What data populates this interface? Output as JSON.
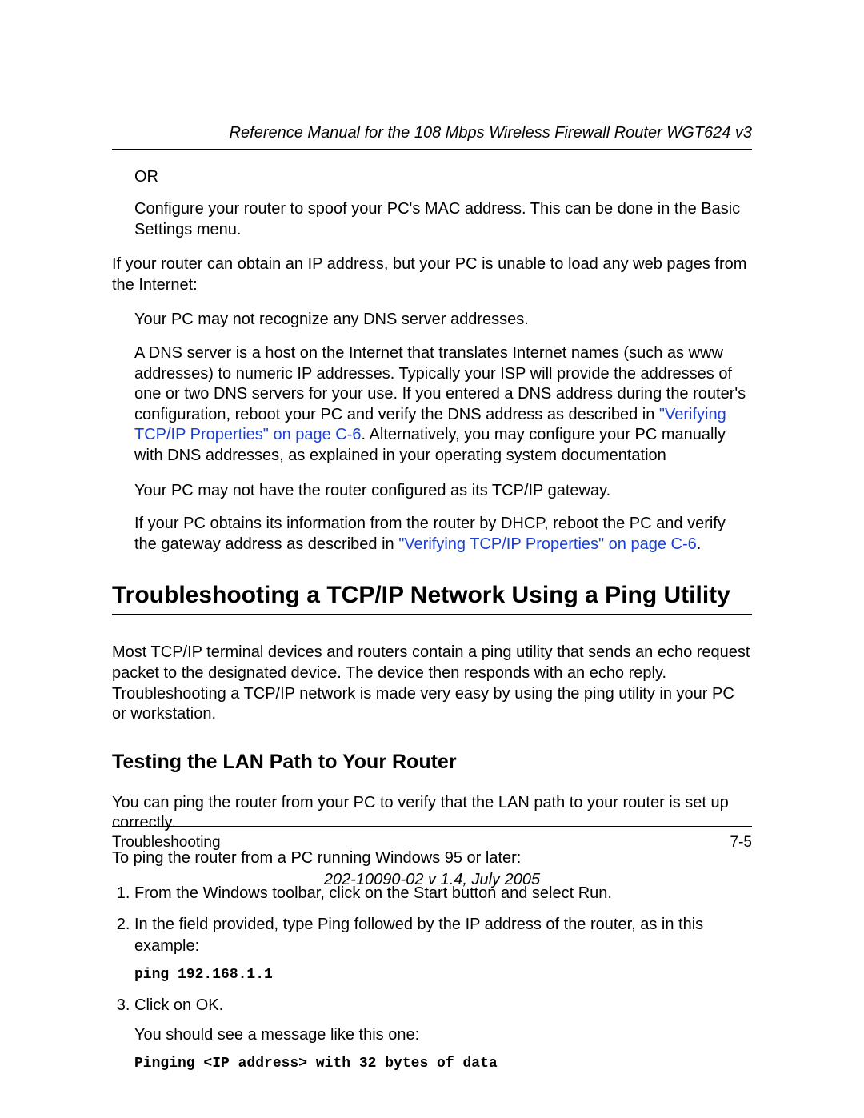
{
  "colors": {
    "link": "#1a3fd6",
    "text": "#000000",
    "bg": "#ffffff",
    "rule": "#000000"
  },
  "typography": {
    "body_family": "Arial, Helvetica, sans-serif",
    "body_size_pt": 15,
    "h1_size_pt": 22,
    "h2_size_pt": 19,
    "code_family": "Courier New",
    "code_bold": true
  },
  "header": {
    "title": "Reference Manual for the 108 Mbps Wireless Firewall Router WGT624 v3"
  },
  "content": {
    "or_label": "OR",
    "spoof_para": "Configure your router to spoof your PC's MAC address. This can be done in the Basic Settings menu.",
    "ip_but_no_web": "If your router can obtain an IP address, but your PC is unable to load any web pages from the Internet:",
    "dns_not_recognize": "Your PC may not recognize any DNS server addresses.",
    "dns_para_1": "A DNS server is a host on the Internet that translates Internet names (such as www addresses) to numeric IP addresses. Typically your ISP will provide the addresses of one or two DNS servers for your use. If you entered a DNS address during the router's configuration, reboot your PC and verify the DNS address as described in ",
    "dns_link": "\"Verifying TCP/IP Properties\" on page C-6",
    "dns_para_2": ". Alternatively, you may configure your PC manually with DNS addresses, as explained in your operating system documentation",
    "gateway_not_set": "Your PC may not have the router configured as its TCP/IP gateway.",
    "gateway_para_1": "If your PC obtains its information from the router by DHCP, reboot the PC and verify the gateway address as described in ",
    "gateway_link": "\"Verifying TCP/IP Properties\" on page C-6",
    "gateway_para_2": ".",
    "h1": "Troubleshooting a TCP/IP Network Using a Ping Utility",
    "ping_intro": "Most TCP/IP terminal devices and routers contain a ping utility that sends an echo request packet to the designated device. The device then responds with an echo reply. Troubleshooting a TCP/IP network is made very easy by using the ping utility in your PC or workstation.",
    "h2": "Testing the LAN Path to Your Router",
    "lan_intro": "You can ping the router from your PC to verify that the LAN path to your router is set up correctly.",
    "lan_steps_intro": "To ping the router from a PC running Windows 95 or later:",
    "steps": {
      "s1": "From the Windows toolbar, click on the Start button and select Run.",
      "s2": "In the field provided, type Ping followed by the IP address of the router, as in this example:",
      "s2_code": "ping 192.168.1.1",
      "s3": "Click on OK.",
      "s3_sub": "You should see a message like this one:",
      "s3_code": "Pinging <IP address> with 32 bytes of data"
    }
  },
  "footer": {
    "left": "Troubleshooting",
    "right": "7-5",
    "doc_version": "202-10090-02 v 1.4, July 2005"
  }
}
